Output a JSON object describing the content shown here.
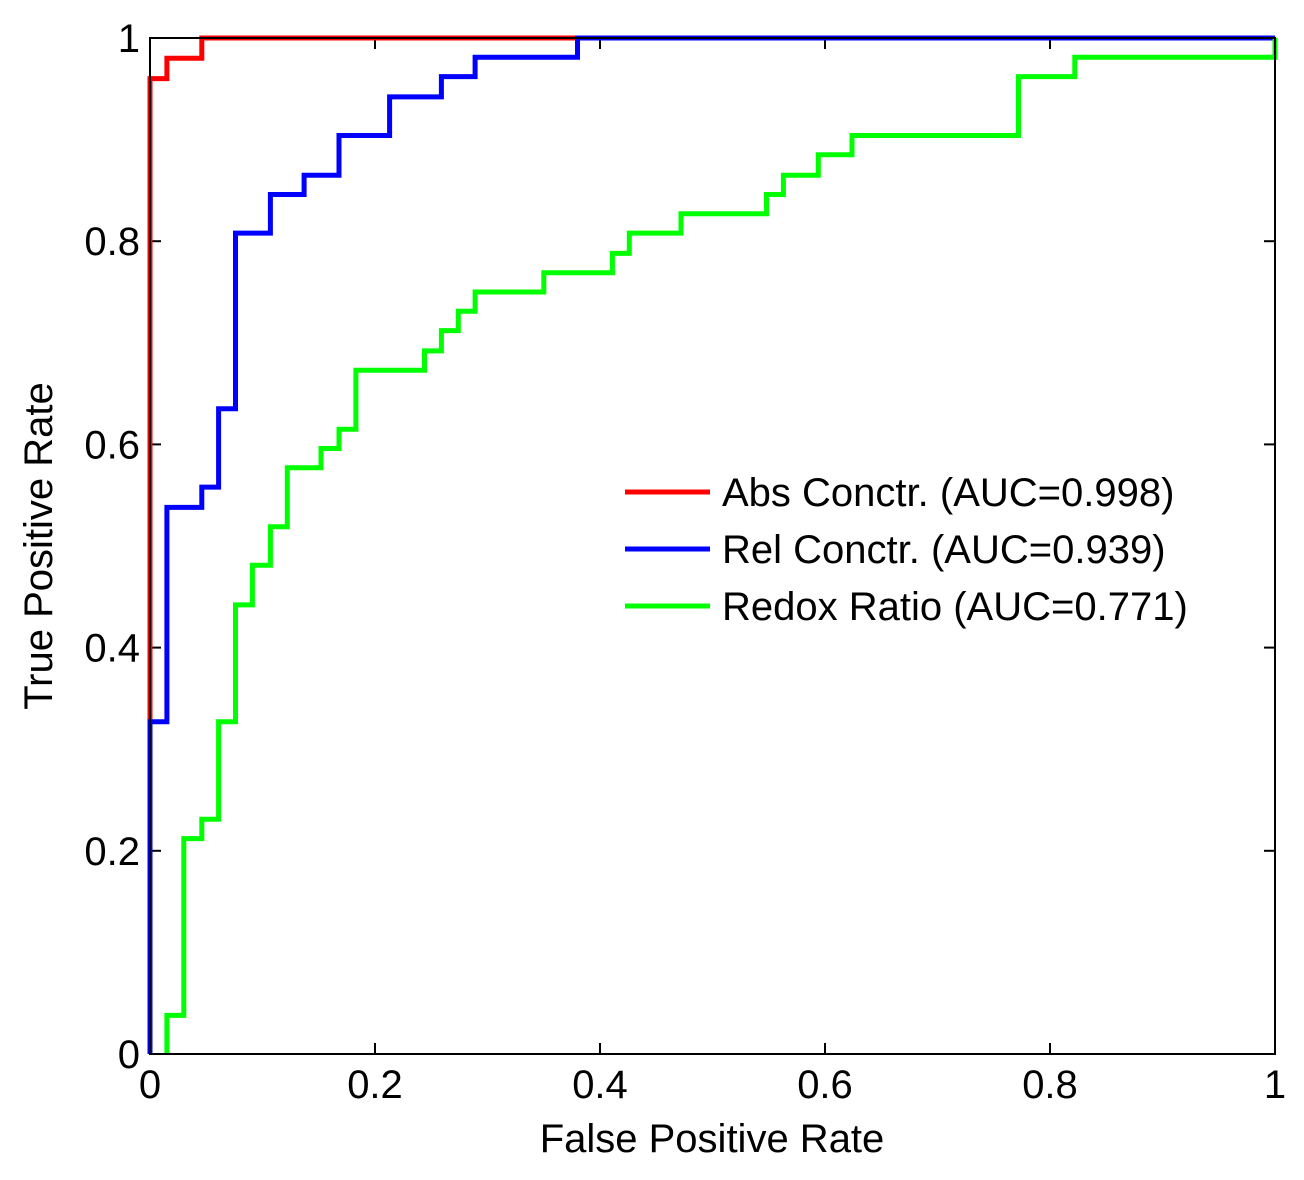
{
  "chart_data": {
    "type": "line",
    "title": "",
    "xlabel": "False Positive Rate",
    "ylabel": "True Positive Rate",
    "xlim": [
      0,
      1
    ],
    "ylim": [
      0,
      1
    ],
    "xticks": [
      0,
      0.2,
      0.4,
      0.6,
      0.8,
      1
    ],
    "yticks": [
      0,
      0.2,
      0.4,
      0.6,
      0.8,
      1
    ],
    "xtick_labels": [
      "0",
      "0.2",
      "0.4",
      "0.6",
      "0.8",
      "1"
    ],
    "ytick_labels": [
      "0",
      "0.2",
      "0.4",
      "0.6",
      "0.8",
      "1"
    ],
    "grid": false,
    "legend_position": "center-right",
    "series": [
      {
        "name": "Abs Conctr. (AUC=0.998)",
        "color": "#ff0000",
        "step": true,
        "x": [
          0,
          0,
          0.015,
          0.015,
          0.046,
          0.046,
          1.0
        ],
        "y": [
          0,
          0.96,
          0.96,
          0.98,
          0.98,
          1.0,
          1.0
        ]
      },
      {
        "name": "Rel Conctr. (AUC=0.939)",
        "color": "#0000ff",
        "step": true,
        "x": [
          0,
          0,
          0.015,
          0.015,
          0.046,
          0.046,
          0.061,
          0.061,
          0.076,
          0.076,
          0.107,
          0.107,
          0.137,
          0.137,
          0.168,
          0.168,
          0.213,
          0.213,
          0.259,
          0.259,
          0.289,
          0.289,
          0.38,
          0.38,
          1.0
        ],
        "y": [
          0,
          0.327,
          0.327,
          0.538,
          0.538,
          0.558,
          0.558,
          0.635,
          0.635,
          0.808,
          0.808,
          0.846,
          0.846,
          0.865,
          0.865,
          0.904,
          0.904,
          0.942,
          0.942,
          0.962,
          0.962,
          0.981,
          0.981,
          1.0,
          1.0
        ]
      },
      {
        "name": "Redox Ratio (AUC=0.771)",
        "color": "#00ff00",
        "step": true,
        "x": [
          0.015,
          0.015,
          0.03,
          0.03,
          0.046,
          0.046,
          0.061,
          0.061,
          0.076,
          0.076,
          0.091,
          0.091,
          0.107,
          0.107,
          0.122,
          0.122,
          0.152,
          0.152,
          0.168,
          0.168,
          0.183,
          0.183,
          0.244,
          0.244,
          0.259,
          0.259,
          0.274,
          0.274,
          0.289,
          0.289,
          0.35,
          0.35,
          0.411,
          0.411,
          0.426,
          0.426,
          0.472,
          0.472,
          0.548,
          0.548,
          0.563,
          0.563,
          0.594,
          0.594,
          0.624,
          0.624,
          0.772,
          0.772,
          0.822,
          0.822,
          1.0,
          1.0
        ],
        "y": [
          0,
          0.038,
          0.038,
          0.212,
          0.212,
          0.231,
          0.231,
          0.327,
          0.327,
          0.442,
          0.442,
          0.481,
          0.481,
          0.519,
          0.519,
          0.577,
          0.577,
          0.596,
          0.596,
          0.615,
          0.615,
          0.673,
          0.673,
          0.692,
          0.692,
          0.712,
          0.712,
          0.731,
          0.731,
          0.75,
          0.75,
          0.769,
          0.769,
          0.788,
          0.788,
          0.808,
          0.808,
          0.827,
          0.827,
          0.846,
          0.846,
          0.865,
          0.865,
          0.885,
          0.885,
          0.904,
          0.904,
          0.962,
          0.962,
          0.981,
          0.981,
          1.0
        ]
      }
    ]
  }
}
